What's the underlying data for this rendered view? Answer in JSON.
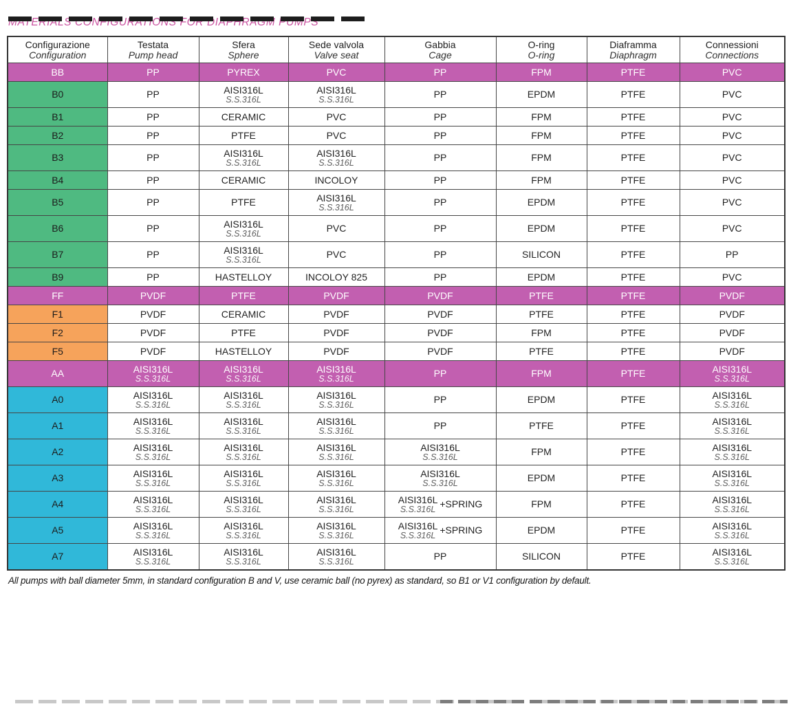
{
  "page": {
    "title": "MATERIALS CONFIGURATIONS FOR DIAPHRAGM PUMPS",
    "footnote": "All pumps with ball diameter 5mm, in standard configuration B and V, use ceramic ball (no pyrex) as standard, so B1 or V1 configuration by default."
  },
  "colors": {
    "title": "#c9519f",
    "magenta_row": "#c25fb0",
    "green_config": "#4fba81",
    "orange_config": "#f6a35b",
    "cyan_config": "#30b8d9"
  },
  "table": {
    "headers": [
      {
        "it": "Configurazione",
        "en": "Configuration"
      },
      {
        "it": "Testata",
        "en": "Pump head"
      },
      {
        "it": "Sfera",
        "en": "Sphere"
      },
      {
        "it": "Sede valvola",
        "en": "Valve seat"
      },
      {
        "it": "Gabbia",
        "en": "Cage"
      },
      {
        "it": "O-ring",
        "en": "O-ring"
      },
      {
        "it": "Diaframma",
        "en": "Diaphragm"
      },
      {
        "it": "Connessioni",
        "en": "Connections"
      }
    ],
    "rows": [
      {
        "config": "BB",
        "style": "magenta",
        "cells": [
          {
            "t": "PP"
          },
          {
            "t": "PYREX"
          },
          {
            "t": "PVC"
          },
          {
            "t": "PP"
          },
          {
            "t": "FPM"
          },
          {
            "t": "PTFE"
          },
          {
            "t": "PVC"
          }
        ]
      },
      {
        "config": "B0",
        "style": "green",
        "cells": [
          {
            "t": "PP"
          },
          {
            "t": "AISI316L",
            "s": "S.S.316L"
          },
          {
            "t": "AISI316L",
            "s": "S.S.316L"
          },
          {
            "t": "PP"
          },
          {
            "t": "EPDM"
          },
          {
            "t": "PTFE"
          },
          {
            "t": "PVC"
          }
        ]
      },
      {
        "config": "B1",
        "style": "green",
        "cells": [
          {
            "t": "PP"
          },
          {
            "t": "CERAMIC"
          },
          {
            "t": "PVC"
          },
          {
            "t": "PP"
          },
          {
            "t": "FPM"
          },
          {
            "t": "PTFE"
          },
          {
            "t": "PVC"
          }
        ]
      },
      {
        "config": "B2",
        "style": "green",
        "cells": [
          {
            "t": "PP"
          },
          {
            "t": "PTFE"
          },
          {
            "t": "PVC"
          },
          {
            "t": "PP"
          },
          {
            "t": "FPM"
          },
          {
            "t": "PTFE"
          },
          {
            "t": "PVC"
          }
        ]
      },
      {
        "config": "B3",
        "style": "green",
        "cells": [
          {
            "t": "PP"
          },
          {
            "t": "AISI316L",
            "s": "S.S.316L"
          },
          {
            "t": "AISI316L",
            "s": "S.S.316L"
          },
          {
            "t": "PP"
          },
          {
            "t": "FPM"
          },
          {
            "t": "PTFE"
          },
          {
            "t": "PVC"
          }
        ]
      },
      {
        "config": "B4",
        "style": "green",
        "cells": [
          {
            "t": "PP"
          },
          {
            "t": "CERAMIC"
          },
          {
            "t": "INCOLOY"
          },
          {
            "t": "PP"
          },
          {
            "t": "FPM"
          },
          {
            "t": "PTFE"
          },
          {
            "t": "PVC"
          }
        ]
      },
      {
        "config": "B5",
        "style": "green",
        "cells": [
          {
            "t": "PP"
          },
          {
            "t": "PTFE"
          },
          {
            "t": "AISI316L",
            "s": "S.S.316L"
          },
          {
            "t": "PP"
          },
          {
            "t": "EPDM"
          },
          {
            "t": "PTFE"
          },
          {
            "t": "PVC"
          }
        ]
      },
      {
        "config": "B6",
        "style": "green",
        "cells": [
          {
            "t": "PP"
          },
          {
            "t": "AISI316L",
            "s": "S.S.316L"
          },
          {
            "t": "PVC"
          },
          {
            "t": "PP"
          },
          {
            "t": "EPDM"
          },
          {
            "t": "PTFE"
          },
          {
            "t": "PVC"
          }
        ]
      },
      {
        "config": "B7",
        "style": "green",
        "cells": [
          {
            "t": "PP"
          },
          {
            "t": "AISI316L",
            "s": "S.S.316L"
          },
          {
            "t": "PVC"
          },
          {
            "t": "PP"
          },
          {
            "t": "SILICON"
          },
          {
            "t": "PTFE"
          },
          {
            "t": "PP"
          }
        ]
      },
      {
        "config": "B9",
        "style": "green",
        "cells": [
          {
            "t": "PP"
          },
          {
            "t": "HASTELLOY"
          },
          {
            "t": "INCOLOY 825"
          },
          {
            "t": "PP"
          },
          {
            "t": "EPDM"
          },
          {
            "t": "PTFE"
          },
          {
            "t": "PVC"
          }
        ]
      },
      {
        "config": "FF",
        "style": "magenta",
        "cells": [
          {
            "t": "PVDF"
          },
          {
            "t": "PTFE"
          },
          {
            "t": "PVDF"
          },
          {
            "t": "PVDF"
          },
          {
            "t": "PTFE"
          },
          {
            "t": "PTFE"
          },
          {
            "t": "PVDF"
          }
        ]
      },
      {
        "config": "F1",
        "style": "orange",
        "cells": [
          {
            "t": "PVDF"
          },
          {
            "t": "CERAMIC"
          },
          {
            "t": "PVDF"
          },
          {
            "t": "PVDF"
          },
          {
            "t": "PTFE"
          },
          {
            "t": "PTFE"
          },
          {
            "t": "PVDF"
          }
        ]
      },
      {
        "config": "F2",
        "style": "orange",
        "cells": [
          {
            "t": "PVDF"
          },
          {
            "t": "PTFE"
          },
          {
            "t": "PVDF"
          },
          {
            "t": "PVDF"
          },
          {
            "t": "FPM"
          },
          {
            "t": "PTFE"
          },
          {
            "t": "PVDF"
          }
        ]
      },
      {
        "config": "F5",
        "style": "orange",
        "cells": [
          {
            "t": "PVDF"
          },
          {
            "t": "HASTELLOY"
          },
          {
            "t": "PVDF"
          },
          {
            "t": "PVDF"
          },
          {
            "t": "PTFE"
          },
          {
            "t": "PTFE"
          },
          {
            "t": "PVDF"
          }
        ]
      },
      {
        "config": "AA",
        "style": "magenta",
        "cells": [
          {
            "t": "AISI316L",
            "s": "S.S.316L"
          },
          {
            "t": "AISI316L",
            "s": "S.S.316L"
          },
          {
            "t": "AISI316L",
            "s": "S.S.316L"
          },
          {
            "t": "PP"
          },
          {
            "t": "FPM"
          },
          {
            "t": "PTFE"
          },
          {
            "t": "AISI316L",
            "s": "S.S.316L"
          }
        ]
      },
      {
        "config": "A0",
        "style": "cyan",
        "cells": [
          {
            "t": "AISI316L",
            "s": "S.S.316L"
          },
          {
            "t": "AISI316L",
            "s": "S.S.316L"
          },
          {
            "t": "AISI316L",
            "s": "S.S.316L"
          },
          {
            "t": "PP"
          },
          {
            "t": "EPDM"
          },
          {
            "t": "PTFE"
          },
          {
            "t": "AISI316L",
            "s": "S.S.316L"
          }
        ]
      },
      {
        "config": "A1",
        "style": "cyan",
        "cells": [
          {
            "t": "AISI316L",
            "s": "S.S.316L"
          },
          {
            "t": "AISI316L",
            "s": "S.S.316L"
          },
          {
            "t": "AISI316L",
            "s": "S.S.316L"
          },
          {
            "t": "PP"
          },
          {
            "t": "PTFE"
          },
          {
            "t": "PTFE"
          },
          {
            "t": "AISI316L",
            "s": "S.S.316L"
          }
        ]
      },
      {
        "config": "A2",
        "style": "cyan",
        "cells": [
          {
            "t": "AISI316L",
            "s": "S.S.316L"
          },
          {
            "t": "AISI316L",
            "s": "S.S.316L"
          },
          {
            "t": "AISI316L",
            "s": "S.S.316L"
          },
          {
            "t": "AISI316L",
            "s": "S.S.316L"
          },
          {
            "t": "FPM"
          },
          {
            "t": "PTFE"
          },
          {
            "t": "AISI316L",
            "s": "S.S.316L"
          }
        ]
      },
      {
        "config": "A3",
        "style": "cyan",
        "cells": [
          {
            "t": "AISI316L",
            "s": "S.S.316L"
          },
          {
            "t": "AISI316L",
            "s": "S.S.316L"
          },
          {
            "t": "AISI316L",
            "s": "S.S.316L"
          },
          {
            "t": "AISI316L",
            "s": "S.S.316L"
          },
          {
            "t": "EPDM"
          },
          {
            "t": "PTFE"
          },
          {
            "t": "AISI316L",
            "s": "S.S.316L"
          }
        ]
      },
      {
        "config": "A4",
        "style": "cyan",
        "cells": [
          {
            "t": "AISI316L",
            "s": "S.S.316L"
          },
          {
            "t": "AISI316L",
            "s": "S.S.316L"
          },
          {
            "t": "AISI316L",
            "s": "S.S.316L"
          },
          {
            "t": "AISI316L",
            "s": "S.S.316L",
            "x": "+SPRING"
          },
          {
            "t": "FPM"
          },
          {
            "t": "PTFE"
          },
          {
            "t": "AISI316L",
            "s": "S.S.316L"
          }
        ]
      },
      {
        "config": "A5",
        "style": "cyan",
        "cells": [
          {
            "t": "AISI316L",
            "s": "S.S.316L"
          },
          {
            "t": "AISI316L",
            "s": "S.S.316L"
          },
          {
            "t": "AISI316L",
            "s": "S.S.316L"
          },
          {
            "t": "AISI316L",
            "s": "S.S.316L",
            "x": "+SPRING"
          },
          {
            "t": "EPDM"
          },
          {
            "t": "PTFE"
          },
          {
            "t": "AISI316L",
            "s": "S.S.316L"
          }
        ]
      },
      {
        "config": "A7",
        "style": "cyan",
        "cells": [
          {
            "t": "AISI316L",
            "s": "S.S.316L"
          },
          {
            "t": "AISI316L",
            "s": "S.S.316L"
          },
          {
            "t": "AISI316L",
            "s": "S.S.316L"
          },
          {
            "t": "PP"
          },
          {
            "t": "SILICON"
          },
          {
            "t": "PTFE"
          },
          {
            "t": "AISI316L",
            "s": "S.S.316L"
          }
        ]
      }
    ]
  }
}
